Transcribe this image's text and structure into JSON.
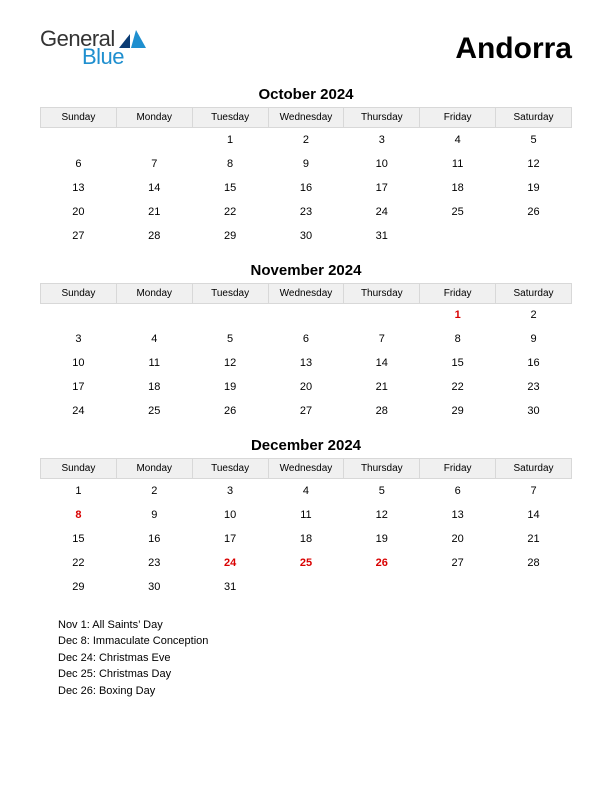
{
  "logo": {
    "word1": "General",
    "word2": "Blue",
    "text_color": "#333333",
    "blue_color": "#1f8fcf"
  },
  "country": "Andorra",
  "weekdays": [
    "Sunday",
    "Monday",
    "Tuesday",
    "Wednesday",
    "Thursday",
    "Friday",
    "Saturday"
  ],
  "months": [
    {
      "title": "October 2024",
      "weeks": [
        [
          {
            "d": ""
          },
          {
            "d": ""
          },
          {
            "d": "1"
          },
          {
            "d": "2"
          },
          {
            "d": "3"
          },
          {
            "d": "4"
          },
          {
            "d": "5"
          }
        ],
        [
          {
            "d": "6"
          },
          {
            "d": "7"
          },
          {
            "d": "8"
          },
          {
            "d": "9"
          },
          {
            "d": "10"
          },
          {
            "d": "11"
          },
          {
            "d": "12"
          }
        ],
        [
          {
            "d": "13"
          },
          {
            "d": "14"
          },
          {
            "d": "15"
          },
          {
            "d": "16"
          },
          {
            "d": "17"
          },
          {
            "d": "18"
          },
          {
            "d": "19"
          }
        ],
        [
          {
            "d": "20"
          },
          {
            "d": "21"
          },
          {
            "d": "22"
          },
          {
            "d": "23"
          },
          {
            "d": "24"
          },
          {
            "d": "25"
          },
          {
            "d": "26"
          }
        ],
        [
          {
            "d": "27"
          },
          {
            "d": "28"
          },
          {
            "d": "29"
          },
          {
            "d": "30"
          },
          {
            "d": "31"
          },
          {
            "d": ""
          },
          {
            "d": ""
          }
        ]
      ]
    },
    {
      "title": "November 2024",
      "weeks": [
        [
          {
            "d": ""
          },
          {
            "d": ""
          },
          {
            "d": ""
          },
          {
            "d": ""
          },
          {
            "d": ""
          },
          {
            "d": "1",
            "h": true
          },
          {
            "d": "2"
          }
        ],
        [
          {
            "d": "3"
          },
          {
            "d": "4"
          },
          {
            "d": "5"
          },
          {
            "d": "6"
          },
          {
            "d": "7"
          },
          {
            "d": "8"
          },
          {
            "d": "9"
          }
        ],
        [
          {
            "d": "10"
          },
          {
            "d": "11"
          },
          {
            "d": "12"
          },
          {
            "d": "13"
          },
          {
            "d": "14"
          },
          {
            "d": "15"
          },
          {
            "d": "16"
          }
        ],
        [
          {
            "d": "17"
          },
          {
            "d": "18"
          },
          {
            "d": "19"
          },
          {
            "d": "20"
          },
          {
            "d": "21"
          },
          {
            "d": "22"
          },
          {
            "d": "23"
          }
        ],
        [
          {
            "d": "24"
          },
          {
            "d": "25"
          },
          {
            "d": "26"
          },
          {
            "d": "27"
          },
          {
            "d": "28"
          },
          {
            "d": "29"
          },
          {
            "d": "30"
          }
        ]
      ]
    },
    {
      "title": "December 2024",
      "weeks": [
        [
          {
            "d": "1"
          },
          {
            "d": "2"
          },
          {
            "d": "3"
          },
          {
            "d": "4"
          },
          {
            "d": "5"
          },
          {
            "d": "6"
          },
          {
            "d": "7"
          }
        ],
        [
          {
            "d": "8",
            "h": true
          },
          {
            "d": "9"
          },
          {
            "d": "10"
          },
          {
            "d": "11"
          },
          {
            "d": "12"
          },
          {
            "d": "13"
          },
          {
            "d": "14"
          }
        ],
        [
          {
            "d": "15"
          },
          {
            "d": "16"
          },
          {
            "d": "17"
          },
          {
            "d": "18"
          },
          {
            "d": "19"
          },
          {
            "d": "20"
          },
          {
            "d": "21"
          }
        ],
        [
          {
            "d": "22"
          },
          {
            "d": "23"
          },
          {
            "d": "24",
            "h": true
          },
          {
            "d": "25",
            "h": true
          },
          {
            "d": "26",
            "h": true
          },
          {
            "d": "27"
          },
          {
            "d": "28"
          }
        ],
        [
          {
            "d": "29"
          },
          {
            "d": "30"
          },
          {
            "d": "31"
          },
          {
            "d": ""
          },
          {
            "d": ""
          },
          {
            "d": ""
          },
          {
            "d": ""
          }
        ]
      ]
    }
  ],
  "holidays": [
    "Nov 1: All Saints’ Day",
    "Dec 8: Immaculate Conception",
    "Dec 24: Christmas Eve",
    "Dec 25: Christmas Day",
    "Dec 26: Boxing Day"
  ],
  "style": {
    "holiday_color": "#d90000",
    "header_bg": "#f0f0f0",
    "header_border": "#d8d8d8",
    "page_bg": "#ffffff"
  }
}
